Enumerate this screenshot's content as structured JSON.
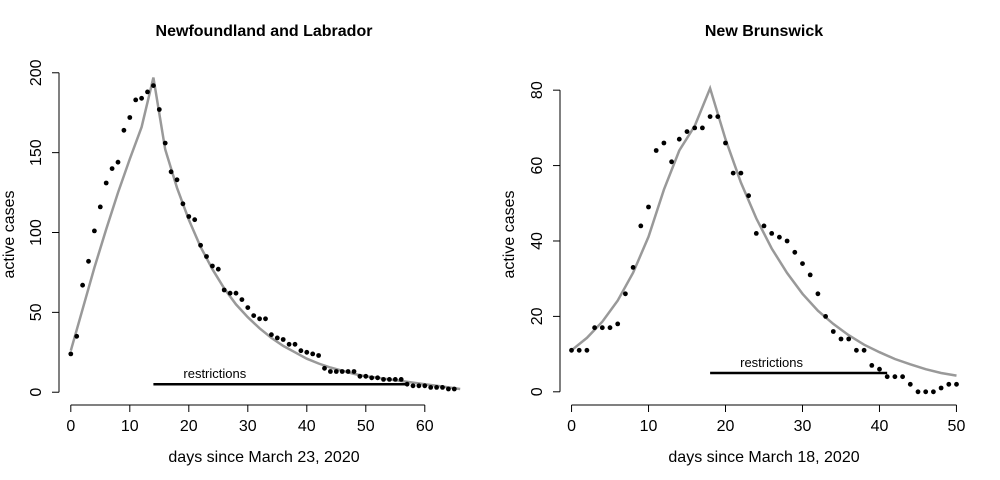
{
  "chart_data": [
    {
      "type": "scatter",
      "title": "Newfoundland and Labrador",
      "xlabel": "days since March 23, 2020",
      "ylabel": "active cases",
      "xlim": [
        -2,
        68
      ],
      "ylim": [
        -8,
        208
      ],
      "xticks": [
        0,
        10,
        20,
        30,
        40,
        50,
        60
      ],
      "yticks": [
        0,
        50,
        100,
        150,
        200
      ],
      "series": [
        {
          "kind": "points",
          "x": [
            0,
            1,
            2,
            3,
            4,
            5,
            6,
            7,
            8,
            9,
            10,
            11,
            12,
            13,
            14,
            15,
            16,
            17,
            18,
            19,
            20,
            21,
            22,
            23,
            24,
            25,
            26,
            27,
            28,
            29,
            30,
            31,
            32,
            33,
            34,
            35,
            36,
            37,
            38,
            39,
            40,
            41,
            42,
            43,
            44,
            45,
            46,
            47,
            48,
            49,
            50,
            51,
            52,
            53,
            54,
            55,
            56,
            57,
            58,
            59,
            60,
            61,
            62,
            63,
            64,
            65
          ],
          "y": [
            24,
            35,
            67,
            82,
            101,
            116,
            131,
            140,
            144,
            164,
            172,
            183,
            184,
            188,
            192,
            177,
            156,
            138,
            133,
            118,
            110,
            108,
            92,
            85,
            79,
            77,
            64,
            62,
            62,
            58,
            53,
            48,
            46,
            46,
            36,
            34,
            33,
            30,
            30,
            26,
            25,
            24,
            23,
            15,
            13,
            13,
            13,
            13,
            13,
            10,
            10,
            9,
            9,
            8,
            8,
            8,
            8,
            5,
            4,
            4,
            4,
            3,
            3,
            3,
            2,
            2
          ]
        },
        {
          "kind": "fit",
          "x": [
            0,
            2,
            4,
            6,
            8,
            10,
            12,
            14,
            16,
            18,
            20,
            22,
            24,
            26,
            28,
            30,
            32,
            34,
            36,
            38,
            40,
            42,
            44,
            46,
            48,
            50,
            52,
            54,
            56,
            58,
            60,
            62,
            64,
            66
          ],
          "y": [
            26,
            52,
            78,
            102,
            125,
            146,
            166,
            197,
            152,
            128,
            108,
            91,
            77,
            65,
            55,
            47,
            40,
            34,
            29,
            25,
            21,
            18,
            15.5,
            13.5,
            11.5,
            10,
            9,
            8,
            7,
            6,
            5,
            4,
            3,
            2
          ]
        }
      ],
      "restrictions": {
        "label": "restrictions",
        "x_start": 14,
        "x_end": 57,
        "y": 5
      }
    },
    {
      "type": "scatter",
      "title": "New Brunswick",
      "xlabel": "days since March 18, 2020",
      "ylabel": "active cases",
      "xlim": [
        -1.5,
        51.5
      ],
      "ylim": [
        -3.5,
        88
      ],
      "xticks": [
        0,
        10,
        20,
        30,
        40,
        50
      ],
      "yticks": [
        0,
        20,
        40,
        60,
        80
      ],
      "series": [
        {
          "kind": "points",
          "x": [
            0,
            1,
            2,
            3,
            4,
            5,
            6,
            7,
            8,
            9,
            10,
            11,
            12,
            13,
            14,
            15,
            16,
            17,
            18,
            19,
            20,
            21,
            22,
            23,
            24,
            25,
            26,
            27,
            28,
            29,
            30,
            31,
            32,
            33,
            34,
            35,
            36,
            37,
            38,
            39,
            40,
            41,
            42,
            43,
            44,
            45,
            46,
            47,
            48,
            49,
            50
          ],
          "y": [
            11,
            11,
            11,
            17,
            17,
            17,
            18,
            26,
            33,
            44,
            49,
            64,
            66,
            61,
            67,
            69,
            70,
            70,
            73,
            73,
            66,
            58,
            58,
            52,
            42,
            44,
            42,
            41,
            40,
            37,
            34,
            31,
            26,
            20,
            16,
            14,
            14,
            11,
            11,
            7,
            6,
            4,
            4,
            4,
            2,
            0,
            0,
            0,
            1,
            2,
            2
          ]
        },
        {
          "kind": "fit",
          "x": [
            0,
            2,
            4,
            6,
            8,
            10,
            12,
            14,
            16,
            18,
            20,
            22,
            24,
            26,
            28,
            30,
            32,
            34,
            36,
            38,
            40,
            42,
            44,
            46,
            48,
            50
          ],
          "y": [
            11,
            14.3,
            18.6,
            24.2,
            31.6,
            41.1,
            53.6,
            64,
            70.5,
            80.5,
            67,
            55.5,
            46,
            38,
            31.5,
            26,
            21.5,
            18,
            15,
            12.5,
            10.5,
            8.7,
            7.3,
            6,
            5,
            4.3
          ]
        }
      ],
      "restrictions": {
        "label": "restrictions",
        "x_start": 18,
        "x_end": 41,
        "y": 5
      }
    }
  ]
}
